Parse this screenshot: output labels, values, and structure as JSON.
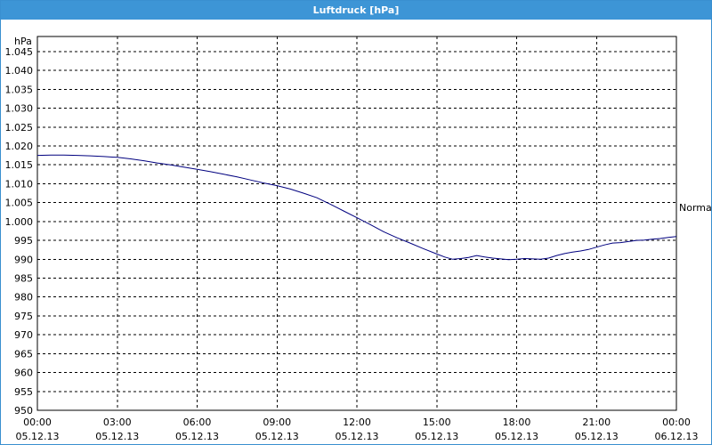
{
  "window": {
    "title": "Luftdruck [hPa]"
  },
  "chart_data": {
    "type": "line",
    "title": "Luftdruck [hPa]",
    "ylabel": "hPa",
    "xlabel": "",
    "ylim": [
      950,
      1049
    ],
    "xlim": [
      0,
      24
    ],
    "grid": true,
    "y_ticks": [
      950,
      955,
      960,
      965,
      970,
      975,
      980,
      985,
      990,
      995,
      1000,
      1005,
      1010,
      1015,
      1020,
      1025,
      1030,
      1035,
      1040,
      1045
    ],
    "y_tick_labels": [
      "950",
      "955",
      "960",
      "965",
      "970",
      "975",
      "980",
      "985",
      "990",
      "995",
      "1.000",
      "1.005",
      "1.010",
      "1.015",
      "1.020",
      "1.025",
      "1.030",
      "1.035",
      "1.040",
      "1.045"
    ],
    "x_ticks": [
      0,
      3,
      6,
      9,
      12,
      15,
      18,
      21,
      24
    ],
    "x_tick_labels": [
      [
        "00:00",
        "05.12.13"
      ],
      [
        "03:00",
        "05.12.13"
      ],
      [
        "06:00",
        "05.12.13"
      ],
      [
        "09:00",
        "05.12.13"
      ],
      [
        "12:00",
        "05.12.13"
      ],
      [
        "15:00",
        "05.12.13"
      ],
      [
        "18:00",
        "05.12.13"
      ],
      [
        "21:00",
        "05.12.13"
      ],
      [
        "00:00",
        "06.12.13"
      ]
    ],
    "reference_line": {
      "label": "Normal",
      "value": 1003.5
    },
    "series": [
      {
        "color": "#00007f",
        "x": [
          0,
          0.5,
          1,
          1.5,
          2,
          2.5,
          3,
          3.5,
          4,
          4.5,
          5,
          5.5,
          6,
          6.5,
          7,
          7.5,
          8,
          8.5,
          9,
          9.5,
          10,
          10.5,
          11,
          11.5,
          12,
          12.5,
          13,
          13.5,
          14,
          14.5,
          15,
          15.3,
          15.6,
          15.9,
          16.2,
          16.5,
          16.8,
          17.1,
          17.4,
          17.7,
          18,
          18.3,
          18.6,
          18.9,
          19.2,
          19.5,
          19.8,
          20.1,
          20.4,
          20.7,
          21,
          21.3,
          21.6,
          21.9,
          22.2,
          22.5,
          22.8,
          23.1,
          23.4,
          23.7,
          24
        ],
        "values": [
          1017.5,
          1017.6,
          1017.6,
          1017.5,
          1017.4,
          1017.2,
          1017,
          1016.6,
          1016.1,
          1015.5,
          1015,
          1014.4,
          1013.8,
          1013.2,
          1012.5,
          1011.8,
          1011,
          1010.2,
          1009.5,
          1008.6,
          1007.5,
          1006.3,
          1004.6,
          1002.8,
          1001,
          999.2,
          997.3,
          995.7,
          994.3,
          992.8,
          991.4,
          990.6,
          990,
          990.2,
          990.5,
          991,
          990.6,
          990.3,
          990.1,
          989.9,
          990,
          990.2,
          990.1,
          990,
          990.3,
          991,
          991.5,
          991.9,
          992.2,
          992.6,
          993.2,
          993.8,
          994.3,
          994.4,
          994.7,
          995,
          995.1,
          995.3,
          995.5,
          995.8,
          996
        ]
      }
    ]
  }
}
